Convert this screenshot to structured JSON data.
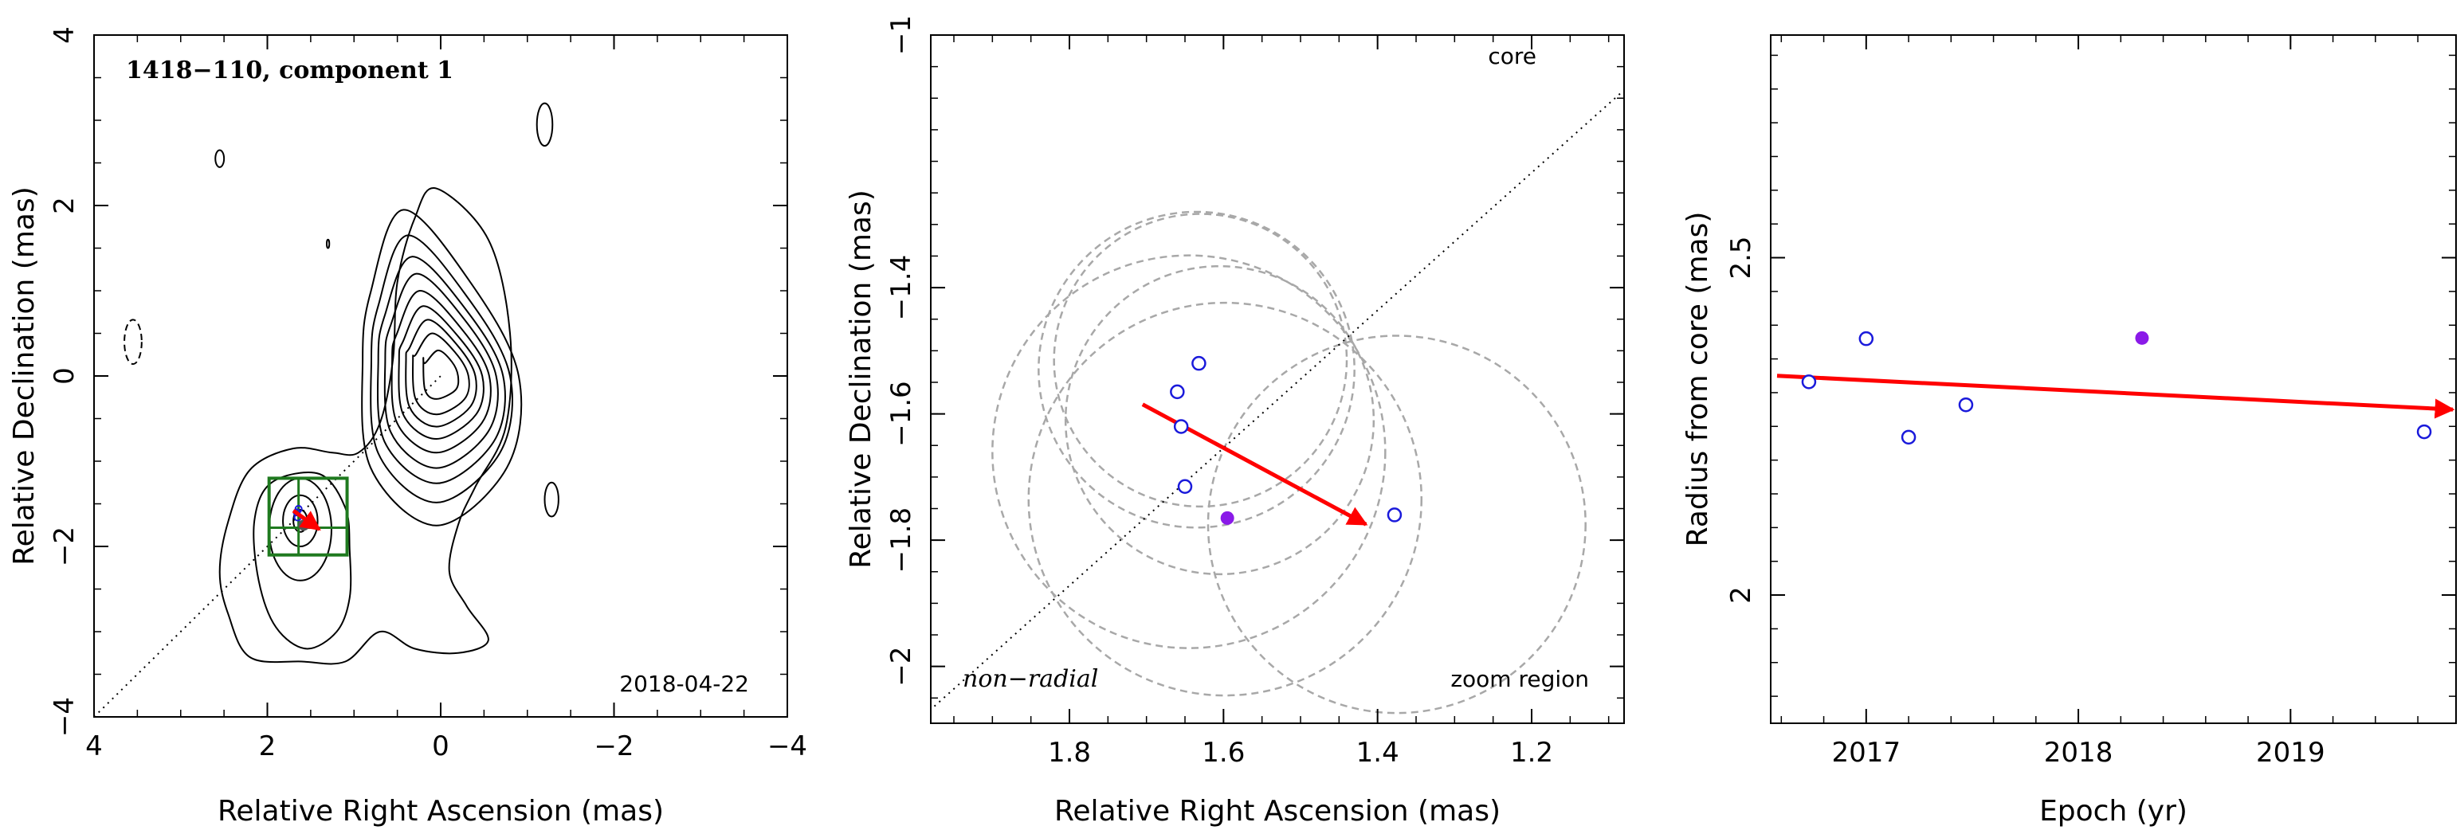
{
  "chart_data": [
    {
      "type": "contour",
      "title": "1418−110, component 1",
      "xlabel": "Relative Right Ascension (mas)",
      "ylabel": "Relative Declination (mas)",
      "xlim": [
        4,
        -4
      ],
      "ylim": [
        -4,
        4
      ],
      "xticks": [
        "4",
        "2",
        "0",
        "−2",
        "−4"
      ],
      "yticks": [
        "−4",
        "−2",
        "0",
        "2",
        "4"
      ],
      "date_label": "2018-04-22",
      "component_position": {
        "ra": 1.58,
        "dec": -1.75
      },
      "motion_vector": {
        "from": {
          "ra": 1.7,
          "dec": -1.58
        },
        "to": {
          "ra": 1.4,
          "dec": -1.8
        }
      },
      "zoom_box": {
        "ra": [
          1.98,
          1.08
        ],
        "dec": [
          -2.1,
          -1.2
        ]
      },
      "colors": {
        "contour": "#000000",
        "zoom_box": "#1f7a1f",
        "vector": "#ff0000"
      }
    },
    {
      "type": "scatter",
      "xlabel": "Relative Right Ascension (mas)",
      "ylabel": "Relative Declination (mas)",
      "xlim": [
        1.98,
        1.08
      ],
      "ylim": [
        -2.09,
        -1.0
      ],
      "xticks": [
        "1.8",
        "1.6",
        "1.4",
        "1.2"
      ],
      "yticks": [
        "−2",
        "−1.8",
        "−1.6",
        "−1.4",
        "−1"
      ],
      "label_core": "core",
      "label_nonradial": "non−radial",
      "label_zoom": "zoom region",
      "points_open": [
        {
          "ra": 1.632,
          "dec": -1.52
        },
        {
          "ra": 1.66,
          "dec": -1.565
        },
        {
          "ra": 1.655,
          "dec": -1.62
        },
        {
          "ra": 1.65,
          "dec": -1.715
        },
        {
          "ra": 1.378,
          "dec": -1.76
        }
      ],
      "point_filled": {
        "ra": 1.595,
        "dec": -1.765
      },
      "circles": [
        {
          "ra": 1.635,
          "dec": -1.53,
          "r": 0.205
        },
        {
          "ra": 1.63,
          "dec": -1.515,
          "r": 0.19
        },
        {
          "ra": 1.605,
          "dec": -1.61,
          "r": 0.2
        },
        {
          "ra": 1.645,
          "dec": -1.66,
          "r": 0.255
        },
        {
          "ra": 1.598,
          "dec": -1.735,
          "r": 0.255
        },
        {
          "ra": 1.375,
          "dec": -1.775,
          "r": 0.245
        }
      ],
      "vector": {
        "from": {
          "ra": 1.705,
          "dec": -1.585
        },
        "to": {
          "ra": 1.415,
          "dec": -1.775
        }
      },
      "colors": {
        "open": "#1a1adb",
        "filled": "#8a1ae8",
        "circles": "#a8a8a8",
        "vector": "#ff0000"
      }
    },
    {
      "type": "scatter",
      "xlabel": "Epoch (yr)",
      "ylabel": "Radius from core (mas)",
      "xlim": [
        2016.55,
        2019.78
      ],
      "ylim": [
        1.81,
        2.83
      ],
      "xticks": [
        "2017",
        "2018",
        "2019"
      ],
      "yticks": [
        "2",
        "2.5"
      ],
      "points_open": [
        {
          "epoch": 2016.73,
          "radius": 2.316
        },
        {
          "epoch": 2017.0,
          "radius": 2.38
        },
        {
          "epoch": 2017.2,
          "radius": 2.234
        },
        {
          "epoch": 2017.47,
          "radius": 2.282
        },
        {
          "epoch": 2019.63,
          "radius": 2.242
        }
      ],
      "point_filled": {
        "epoch": 2018.3,
        "radius": 2.381
      },
      "trend": {
        "from": {
          "epoch": 2016.58,
          "radius": 2.325
        },
        "to": {
          "epoch": 2019.78,
          "radius": 2.275
        }
      },
      "colors": {
        "open": "#1a1adb",
        "filled": "#8a1ae8",
        "vector": "#ff0000"
      }
    }
  ]
}
